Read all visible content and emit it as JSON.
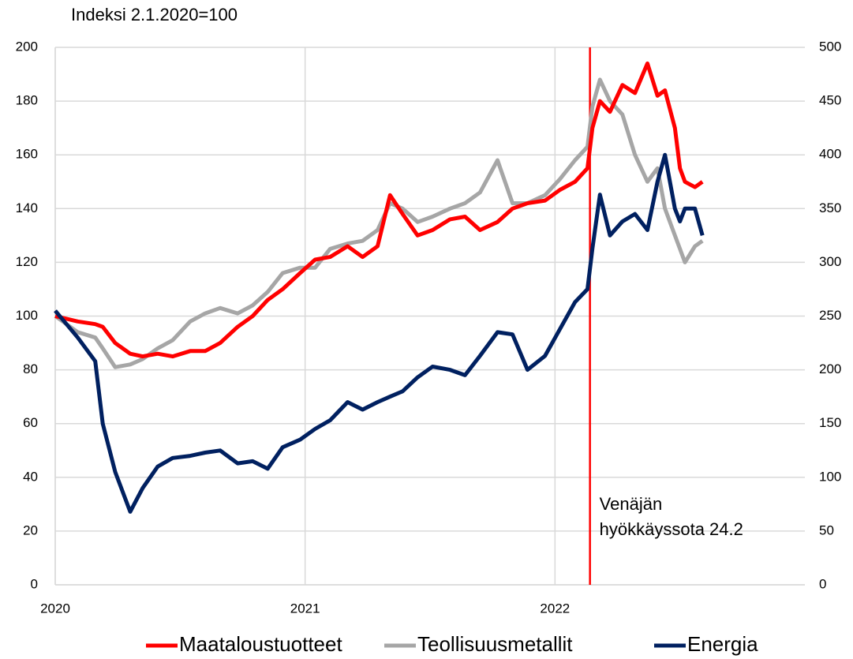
{
  "chart_data": {
    "type": "line",
    "subtitle": "Indeksi 2.1.2020=100",
    "x": [
      2020,
      2020.09,
      2020.16,
      2020.19,
      2020.24,
      2020.3,
      2020.35,
      2020.41,
      2020.47,
      2020.54,
      2020.6,
      2020.66,
      2020.73,
      2020.79,
      2020.85,
      2020.91,
      2020.98,
      2021.04,
      2021.1,
      2021.17,
      2021.23,
      2021.29,
      2021.34,
      2021.39,
      2021.45,
      2021.51,
      2021.58,
      2021.64,
      2021.7,
      2021.77,
      2021.83,
      2021.89,
      2021.96,
      2022.02,
      2022.08,
      2022.13,
      2022.15,
      2022.18,
      2022.22,
      2022.27,
      2022.32,
      2022.37,
      2022.41,
      2022.44,
      2022.48,
      2022.5,
      2022.52,
      2022.56,
      2022.59
    ],
    "series": [
      {
        "name": "Maataloustuotteet",
        "color": "#ff0000",
        "values": [
          100,
          98,
          97,
          96,
          90,
          86,
          85,
          86,
          85,
          87,
          87,
          90,
          96,
          100,
          106,
          110,
          116,
          121,
          122,
          126,
          122,
          126,
          145,
          138,
          130,
          132,
          136,
          137,
          132,
          135,
          140,
          142,
          143,
          147,
          150,
          155,
          170,
          180,
          176,
          186,
          183,
          194,
          182,
          184,
          170,
          155,
          150,
          148,
          150
        ]
      },
      {
        "name": "Teollisuusmetallit",
        "color": "#a6a6a6",
        "values": [
          100,
          94,
          92,
          88,
          81,
          82,
          84,
          88,
          91,
          98,
          101,
          103,
          101,
          104,
          109,
          116,
          118,
          118,
          125,
          127,
          128,
          132,
          142,
          140,
          135,
          137,
          140,
          142,
          146,
          158,
          142,
          142,
          145,
          151,
          158,
          163,
          178,
          188,
          180,
          175,
          160,
          150,
          155,
          140,
          130,
          125,
          120,
          126,
          128
        ]
      },
      {
        "name": "Energia",
        "color": "#002060",
        "axis": "y2",
        "values": [
          255,
          230,
          208,
          150,
          105,
          68,
          90,
          110,
          118,
          120,
          123,
          125,
          113,
          115,
          108,
          128,
          135,
          145,
          153,
          170,
          163,
          170,
          175,
          180,
          193,
          203,
          200,
          195,
          213,
          235,
          233,
          200,
          213,
          238,
          263,
          275,
          313,
          363,
          325,
          338,
          345,
          330,
          375,
          400,
          350,
          338,
          350,
          350,
          325
        ]
      }
    ],
    "xlim": [
      2020,
      2023
    ],
    "xticks": [
      2020,
      2021,
      2022
    ],
    "ylim": [
      0,
      200
    ],
    "yticks": [
      0,
      20,
      40,
      60,
      80,
      100,
      120,
      140,
      160,
      180,
      200
    ],
    "y2lim": [
      0,
      500
    ],
    "y2ticks": [
      0,
      50,
      100,
      150,
      200,
      250,
      300,
      350,
      400,
      450,
      500
    ],
    "grid": true,
    "legend": "bottom",
    "annotation": {
      "x": 2022.14,
      "color": "#ff0000",
      "text": [
        "Venäjän",
        "hyökkäyssota 24.2"
      ]
    }
  }
}
